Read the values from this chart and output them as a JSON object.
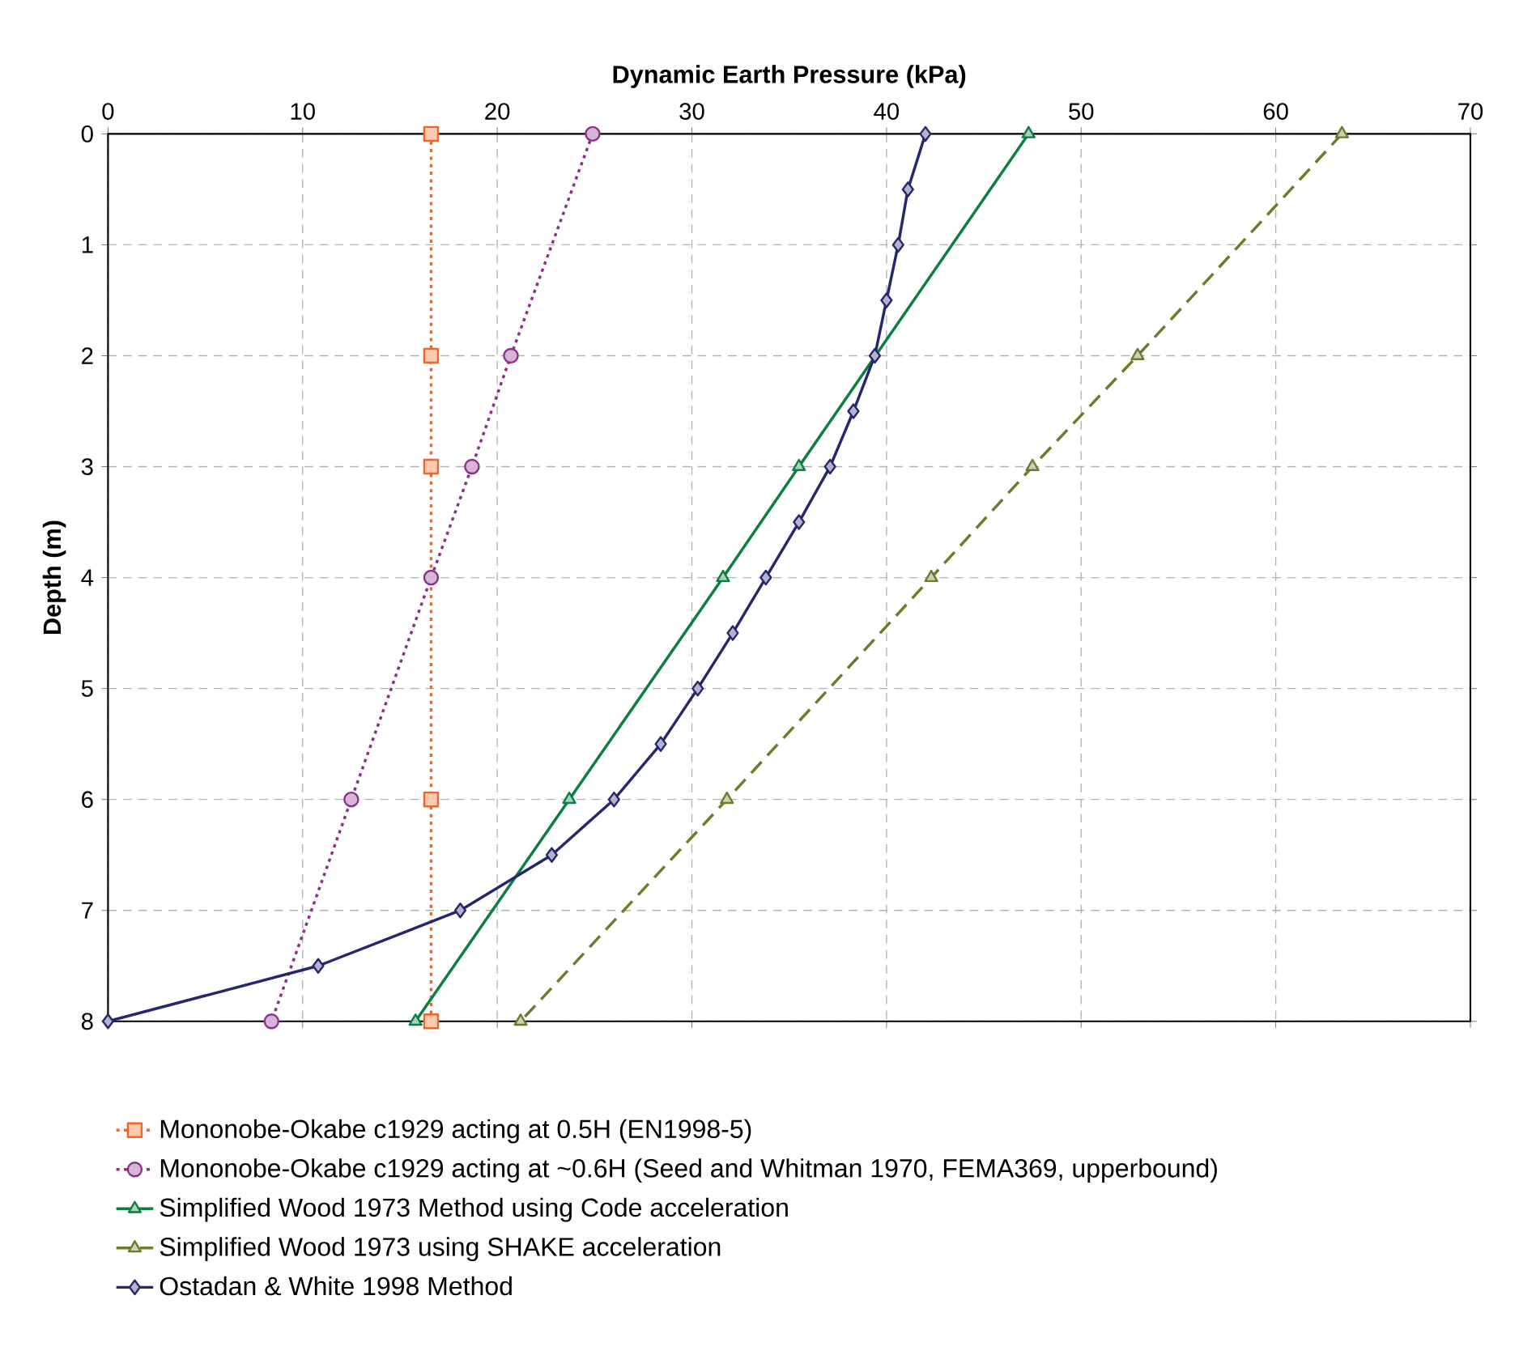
{
  "chart_data": {
    "type": "line",
    "xlabel": "Dynamic Earth Pressure (kPa)",
    "ylabel": "Depth (m)",
    "xlim": [
      0,
      70
    ],
    "xticks": [
      0,
      10,
      20,
      30,
      40,
      50,
      60,
      70
    ],
    "ylim": [
      8,
      0
    ],
    "yticks": [
      0,
      1,
      2,
      3,
      4,
      5,
      6,
      7,
      8
    ],
    "grid": true,
    "legend": "bottom",
    "series": [
      {
        "name": "Mononobe-Okabe c1929 acting at 0.5H (EN1998-5)",
        "color": "#f26522",
        "marker": "square",
        "line_style": "dotted",
        "x": [
          16.6,
          16.6,
          16.6,
          16.6,
          16.6
        ],
        "values": [
          0,
          2,
          3,
          6,
          8
        ]
      },
      {
        "name": "Mononobe-Okabe c1929 acting at ~0.6H (Seed and Whitman 1970, FEMA369, upperbound)",
        "color": "#8b2f8a",
        "marker": "circle",
        "line_style": "dotted",
        "x": [
          24.9,
          20.7,
          18.7,
          16.6,
          12.5,
          8.4
        ],
        "values": [
          0,
          2,
          3,
          4,
          6,
          8
        ]
      },
      {
        "name": "Simplified Wood 1973 Method using Code acceleration",
        "color": "#0a7f3f",
        "marker": "triangle",
        "line_style": "solid",
        "x": [
          47.3,
          35.5,
          31.6,
          23.7,
          15.8
        ],
        "values": [
          0,
          3,
          4,
          6,
          8
        ]
      },
      {
        "name": "Simplified Wood 1973 using SHAKE acceleration",
        "color": "#6f7a2a",
        "marker": "triangle",
        "line_style": "dashed",
        "x": [
          63.4,
          52.9,
          47.5,
          42.3,
          31.8,
          21.2
        ],
        "values": [
          0,
          2,
          3,
          4,
          6,
          8
        ]
      },
      {
        "name": "Ostadan & White 1998 Method",
        "color": "#26276e",
        "marker": "diamond",
        "line_style": "solid",
        "x": [
          42.0,
          41.1,
          40.6,
          40.0,
          39.4,
          38.3,
          37.1,
          35.5,
          33.8,
          32.1,
          30.3,
          28.4,
          26.0,
          22.8,
          18.1,
          10.8,
          0
        ],
        "values": [
          0,
          0.5,
          1,
          1.5,
          2,
          2.5,
          3,
          3.5,
          4,
          4.5,
          5,
          5.5,
          6,
          6.5,
          7,
          7.5,
          8
        ]
      }
    ]
  }
}
